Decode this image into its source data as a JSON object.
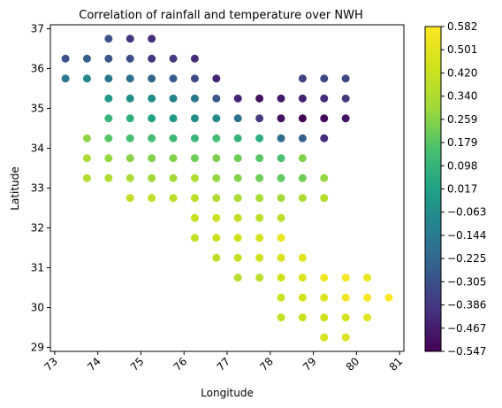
{
  "chart_data": {
    "type": "scatter",
    "title": "Correlation of rainfall and temperature over NWH",
    "xlabel": "Longitude",
    "ylabel": "Latitude",
    "xlim": [
      72.9,
      81.1
    ],
    "ylim": [
      28.9,
      37.1
    ],
    "xticks": [
      73,
      74,
      75,
      76,
      77,
      78,
      79,
      80,
      81
    ],
    "yticks": [
      29,
      30,
      31,
      32,
      33,
      34,
      35,
      36,
      37
    ],
    "colormap": "viridis",
    "colorbar": {
      "min": -0.547,
      "max": 0.582,
      "tick_labels": [
        "0.582",
        "0.501",
        "0.420",
        "0.340",
        "0.259",
        "0.179",
        "0.098",
        "0.017",
        "−0.063",
        "−0.144",
        "−0.225",
        "−0.305",
        "−0.386",
        "−0.467",
        "−0.547"
      ]
    },
    "points": [
      {
        "x": 74.25,
        "y": 36.75,
        "v": -0.3
      },
      {
        "x": 74.75,
        "y": 36.75,
        "v": -0.4
      },
      {
        "x": 75.25,
        "y": 36.75,
        "v": -0.42
      },
      {
        "x": 73.25,
        "y": 36.25,
        "v": -0.3
      },
      {
        "x": 73.75,
        "y": 36.25,
        "v": -0.25
      },
      {
        "x": 74.25,
        "y": 36.25,
        "v": -0.28
      },
      {
        "x": 74.75,
        "y": 36.25,
        "v": -0.3
      },
      {
        "x": 75.25,
        "y": 36.25,
        "v": -0.4
      },
      {
        "x": 75.75,
        "y": 36.25,
        "v": -0.38
      },
      {
        "x": 76.25,
        "y": 36.25,
        "v": -0.42
      },
      {
        "x": 73.25,
        "y": 35.75,
        "v": -0.15
      },
      {
        "x": 73.75,
        "y": 35.75,
        "v": -0.1
      },
      {
        "x": 74.25,
        "y": 35.75,
        "v": -0.15
      },
      {
        "x": 74.75,
        "y": 35.75,
        "v": -0.2
      },
      {
        "x": 75.25,
        "y": 35.75,
        "v": -0.22
      },
      {
        "x": 75.75,
        "y": 35.75,
        "v": -0.26
      },
      {
        "x": 76.25,
        "y": 35.75,
        "v": -0.32
      },
      {
        "x": 76.75,
        "y": 35.75,
        "v": -0.44
      },
      {
        "x": 78.75,
        "y": 35.75,
        "v": -0.35
      },
      {
        "x": 79.25,
        "y": 35.75,
        "v": -0.33
      },
      {
        "x": 79.75,
        "y": 35.75,
        "v": -0.33
      },
      {
        "x": 74.25,
        "y": 35.25,
        "v": -0.02
      },
      {
        "x": 74.75,
        "y": 35.25,
        "v": -0.06
      },
      {
        "x": 75.25,
        "y": 35.25,
        "v": -0.08
      },
      {
        "x": 75.75,
        "y": 35.25,
        "v": -0.12
      },
      {
        "x": 76.25,
        "y": 35.25,
        "v": -0.16
      },
      {
        "x": 76.75,
        "y": 35.25,
        "v": -0.28
      },
      {
        "x": 77.25,
        "y": 35.25,
        "v": -0.45
      },
      {
        "x": 77.75,
        "y": 35.25,
        "v": -0.5
      },
      {
        "x": 78.25,
        "y": 35.25,
        "v": -0.48
      },
      {
        "x": 78.75,
        "y": 35.25,
        "v": -0.45
      },
      {
        "x": 79.25,
        "y": 35.25,
        "v": -0.42
      },
      {
        "x": 79.75,
        "y": 35.25,
        "v": -0.38
      },
      {
        "x": 74.25,
        "y": 34.75,
        "v": 0.1
      },
      {
        "x": 74.75,
        "y": 34.75,
        "v": 0.08
      },
      {
        "x": 75.25,
        "y": 34.75,
        "v": 0.02
      },
      {
        "x": 75.75,
        "y": 34.75,
        "v": -0.02
      },
      {
        "x": 76.25,
        "y": 34.75,
        "v": -0.06
      },
      {
        "x": 76.75,
        "y": 34.75,
        "v": -0.08
      },
      {
        "x": 77.25,
        "y": 34.75,
        "v": -0.18
      },
      {
        "x": 77.75,
        "y": 34.75,
        "v": -0.38
      },
      {
        "x": 78.25,
        "y": 34.75,
        "v": -0.5
      },
      {
        "x": 78.75,
        "y": 34.75,
        "v": -0.55
      },
      {
        "x": 79.25,
        "y": 34.75,
        "v": -0.52
      },
      {
        "x": 79.75,
        "y": 34.75,
        "v": -0.5
      },
      {
        "x": 73.75,
        "y": 34.25,
        "v": 0.27
      },
      {
        "x": 74.25,
        "y": 34.25,
        "v": 0.18
      },
      {
        "x": 74.75,
        "y": 34.25,
        "v": 0.15
      },
      {
        "x": 75.25,
        "y": 34.25,
        "v": 0.14
      },
      {
        "x": 75.75,
        "y": 34.25,
        "v": 0.12
      },
      {
        "x": 76.25,
        "y": 34.25,
        "v": 0.1
      },
      {
        "x": 76.75,
        "y": 34.25,
        "v": 0.14
      },
      {
        "x": 77.25,
        "y": 34.25,
        "v": 0.1
      },
      {
        "x": 77.75,
        "y": 34.25,
        "v": 0.06
      },
      {
        "x": 78.25,
        "y": 34.25,
        "v": -0.2
      },
      {
        "x": 78.75,
        "y": 34.25,
        "v": -0.24
      },
      {
        "x": 79.25,
        "y": 34.25,
        "v": -0.42
      },
      {
        "x": 73.75,
        "y": 33.75,
        "v": 0.33
      },
      {
        "x": 74.25,
        "y": 33.75,
        "v": 0.28
      },
      {
        "x": 74.75,
        "y": 33.75,
        "v": 0.26
      },
      {
        "x": 75.25,
        "y": 33.75,
        "v": 0.25
      },
      {
        "x": 75.75,
        "y": 33.75,
        "v": 0.25
      },
      {
        "x": 76.25,
        "y": 33.75,
        "v": 0.22
      },
      {
        "x": 76.75,
        "y": 33.75,
        "v": 0.24
      },
      {
        "x": 77.25,
        "y": 33.75,
        "v": 0.22
      },
      {
        "x": 77.75,
        "y": 33.75,
        "v": 0.18
      },
      {
        "x": 78.25,
        "y": 33.75,
        "v": 0.16
      },
      {
        "x": 78.75,
        "y": 33.75,
        "v": 0.25
      },
      {
        "x": 73.75,
        "y": 33.25,
        "v": 0.36
      },
      {
        "x": 74.25,
        "y": 33.25,
        "v": 0.34
      },
      {
        "x": 74.75,
        "y": 33.25,
        "v": 0.33
      },
      {
        "x": 75.25,
        "y": 33.25,
        "v": 0.3
      },
      {
        "x": 75.75,
        "y": 33.25,
        "v": 0.3
      },
      {
        "x": 76.25,
        "y": 33.25,
        "v": 0.34
      },
      {
        "x": 76.75,
        "y": 33.25,
        "v": 0.28
      },
      {
        "x": 77.25,
        "y": 33.25,
        "v": 0.25
      },
      {
        "x": 77.75,
        "y": 33.25,
        "v": 0.22
      },
      {
        "x": 78.25,
        "y": 33.25,
        "v": 0.2
      },
      {
        "x": 78.75,
        "y": 33.25,
        "v": 0.22
      },
      {
        "x": 79.25,
        "y": 33.25,
        "v": 0.28
      },
      {
        "x": 74.75,
        "y": 32.75,
        "v": 0.4
      },
      {
        "x": 75.25,
        "y": 32.75,
        "v": 0.38
      },
      {
        "x": 75.75,
        "y": 32.75,
        "v": 0.38
      },
      {
        "x": 76.25,
        "y": 32.75,
        "v": 0.38
      },
      {
        "x": 76.75,
        "y": 32.75,
        "v": 0.34
      },
      {
        "x": 77.25,
        "y": 32.75,
        "v": 0.33
      },
      {
        "x": 77.75,
        "y": 32.75,
        "v": 0.32
      },
      {
        "x": 78.25,
        "y": 32.75,
        "v": 0.3
      },
      {
        "x": 78.75,
        "y": 32.75,
        "v": 0.33
      },
      {
        "x": 79.25,
        "y": 32.75,
        "v": 0.36
      },
      {
        "x": 76.25,
        "y": 32.25,
        "v": 0.42
      },
      {
        "x": 76.75,
        "y": 32.25,
        "v": 0.42
      },
      {
        "x": 77.25,
        "y": 32.25,
        "v": 0.4
      },
      {
        "x": 77.75,
        "y": 32.25,
        "v": 0.38
      },
      {
        "x": 78.25,
        "y": 32.25,
        "v": 0.38
      },
      {
        "x": 76.25,
        "y": 31.75,
        "v": 0.4
      },
      {
        "x": 76.75,
        "y": 31.75,
        "v": 0.43
      },
      {
        "x": 77.25,
        "y": 31.75,
        "v": 0.44
      },
      {
        "x": 77.75,
        "y": 31.75,
        "v": 0.46
      },
      {
        "x": 78.25,
        "y": 31.75,
        "v": 0.52
      },
      {
        "x": 76.75,
        "y": 31.25,
        "v": 0.38
      },
      {
        "x": 77.25,
        "y": 31.25,
        "v": 0.4
      },
      {
        "x": 77.75,
        "y": 31.25,
        "v": 0.44
      },
      {
        "x": 78.25,
        "y": 31.25,
        "v": 0.48
      },
      {
        "x": 78.75,
        "y": 31.25,
        "v": 0.5
      },
      {
        "x": 77.25,
        "y": 30.75,
        "v": 0.36
      },
      {
        "x": 77.75,
        "y": 30.75,
        "v": 0.38
      },
      {
        "x": 78.25,
        "y": 30.75,
        "v": 0.44
      },
      {
        "x": 78.75,
        "y": 30.75,
        "v": 0.48
      },
      {
        "x": 79.25,
        "y": 30.75,
        "v": 0.54
      },
      {
        "x": 79.75,
        "y": 30.75,
        "v": 0.56
      },
      {
        "x": 80.25,
        "y": 30.75,
        "v": 0.52
      },
      {
        "x": 78.25,
        "y": 30.25,
        "v": 0.42
      },
      {
        "x": 78.75,
        "y": 30.25,
        "v": 0.44
      },
      {
        "x": 79.25,
        "y": 30.25,
        "v": 0.48
      },
      {
        "x": 79.75,
        "y": 30.25,
        "v": 0.54
      },
      {
        "x": 80.25,
        "y": 30.25,
        "v": 0.56
      },
      {
        "x": 80.75,
        "y": 30.25,
        "v": 0.58
      },
      {
        "x": 78.25,
        "y": 29.75,
        "v": 0.4
      },
      {
        "x": 78.75,
        "y": 29.75,
        "v": 0.42
      },
      {
        "x": 79.25,
        "y": 29.75,
        "v": 0.44
      },
      {
        "x": 79.75,
        "y": 29.75,
        "v": 0.46
      },
      {
        "x": 80.25,
        "y": 29.75,
        "v": 0.5
      },
      {
        "x": 79.25,
        "y": 29.25,
        "v": 0.46
      },
      {
        "x": 79.75,
        "y": 29.25,
        "v": 0.48
      }
    ]
  }
}
